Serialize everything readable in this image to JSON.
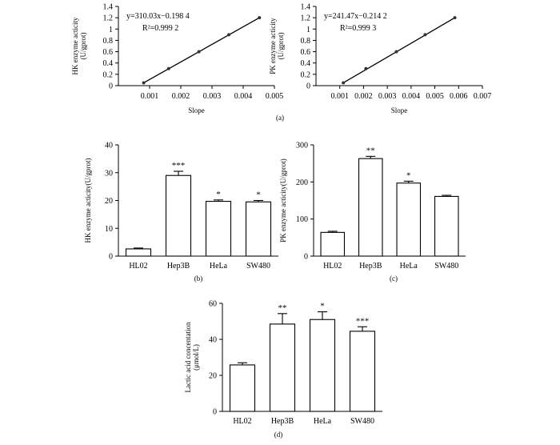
{
  "chart_data": [
    {
      "id": "a1",
      "type": "scatter",
      "panel_label": "(a)",
      "xlabel": "Slope",
      "ylabel_lines": [
        "HK enzyme acticity",
        "(U/gprot)"
      ],
      "xlim": [
        0,
        0.005
      ],
      "ylim": [
        0,
        1.4
      ],
      "xticks": [
        0.001,
        0.002,
        0.003,
        0.004,
        0.005
      ],
      "xtick_labels": [
        "0.001",
        "0.002",
        "0.003",
        "0.004",
        "0.005"
      ],
      "yticks": [
        0,
        0.2,
        0.4,
        0.6,
        0.8,
        1,
        1.2,
        1.4
      ],
      "ytick_labels": [
        "0",
        "0.2",
        "0.4",
        "0.6",
        "0.8",
        "1",
        "1.2",
        "1.4"
      ],
      "equation": "y=310.03x−0.198 4",
      "r2": "R²=0.999 2",
      "x": [
        0.00081,
        0.00161,
        0.00258,
        0.00354,
        0.00452
      ],
      "y": [
        0.05,
        0.3,
        0.6,
        0.9,
        1.2
      ],
      "fit_x": [
        0.0008,
        0.00455
      ]
    },
    {
      "id": "a2",
      "type": "scatter",
      "panel_label": "",
      "xlabel": "Slope",
      "ylabel_lines": [
        "PK enzyme acticity",
        "(U/gprot)"
      ],
      "xlim": [
        0,
        0.007
      ],
      "ylim": [
        0,
        1.4
      ],
      "xticks": [
        0.001,
        0.002,
        0.003,
        0.004,
        0.005,
        0.006,
        0.007
      ],
      "xtick_labels": [
        "0.001",
        "0.002",
        "0.003",
        "0.004",
        "0.005",
        "0.006",
        "0.007"
      ],
      "yticks": [
        0,
        0.2,
        0.4,
        0.6,
        0.8,
        1,
        1.2,
        1.4
      ],
      "ytick_labels": [
        "0",
        "0.2",
        "0.4",
        "0.6",
        "0.8",
        "1",
        "1.2",
        "1.4"
      ],
      "equation": "y=241.47x−0.214 2",
      "r2": "R²=0.999 3",
      "x": [
        0.00115,
        0.0021,
        0.00338,
        0.00459,
        0.00584
      ],
      "y": [
        0.05,
        0.3,
        0.6,
        0.9,
        1.2
      ],
      "fit_x": [
        0.00115,
        0.00585
      ]
    },
    {
      "id": "b",
      "type": "bar",
      "panel_label": "(b)",
      "ylabel": "HK enzyme acticity(U/gprot)",
      "categories": [
        "HL02",
        "Hep3B",
        "HeLa",
        "SW480"
      ],
      "values": [
        2.6,
        29,
        19.7,
        19.5
      ],
      "errors": [
        0.3,
        1.5,
        0.5,
        0.5
      ],
      "significance": [
        "",
        "***",
        "*",
        "*"
      ],
      "ylim": [
        0,
        40
      ],
      "yticks": [
        0,
        10,
        20,
        30,
        40
      ],
      "ytick_labels": [
        "0",
        "10",
        "20",
        "30",
        "40"
      ]
    },
    {
      "id": "c",
      "type": "bar",
      "panel_label": "(c)",
      "ylabel": "PK enzyme acticity(U/gprot)",
      "categories": [
        "HL02",
        "Hep3B",
        "HeLa",
        "SW480"
      ],
      "values": [
        64,
        263,
        197,
        161
      ],
      "errors": [
        3,
        6,
        5,
        3
      ],
      "significance": [
        "",
        "**",
        "*",
        ""
      ],
      "ylim": [
        0,
        300
      ],
      "yticks": [
        0,
        100,
        200,
        300
      ],
      "ytick_labels": [
        "0",
        "100",
        "200",
        "300"
      ]
    },
    {
      "id": "d",
      "type": "bar",
      "panel_label": "(d)",
      "ylabel_lines": [
        "Lactic acid concentation",
        "(μmol/L)"
      ],
      "categories": [
        "HL02",
        "Hep3B",
        "HeLa",
        "SW480"
      ],
      "values": [
        25.8,
        48.5,
        51,
        44.5
      ],
      "errors": [
        1.2,
        5.8,
        4.3,
        2.5
      ],
      "significance": [
        "",
        "**",
        "*",
        "***"
      ],
      "ylim": [
        0,
        60
      ],
      "yticks": [
        0,
        20,
        40,
        60
      ],
      "ytick_labels": [
        "0",
        "20",
        "40",
        "60"
      ]
    }
  ]
}
